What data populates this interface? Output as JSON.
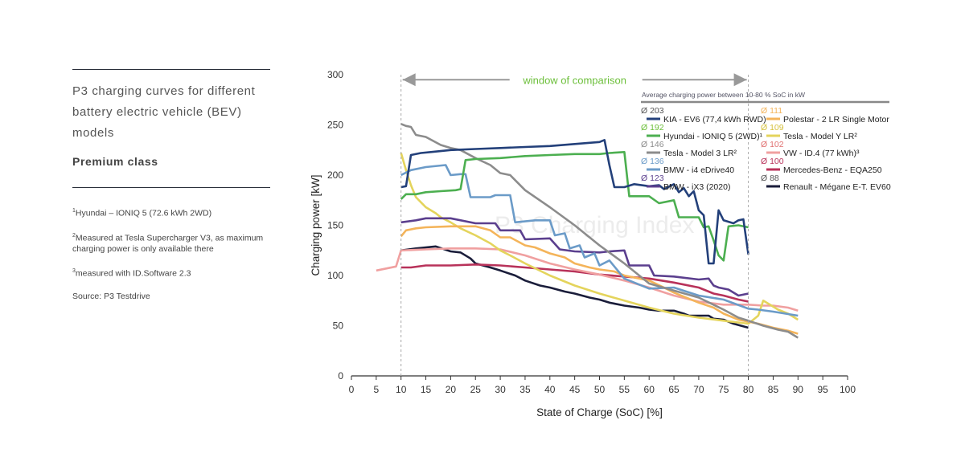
{
  "sidebar": {
    "title_lines": [
      "P3 charging curves for different",
      "battery electric vehicle (BEV)",
      "models"
    ],
    "class_label": "Premium class",
    "notes": [
      {
        "num": "1",
        "text": "Hyundai – IONIQ 5 (72.6 kWh 2WD)"
      },
      {
        "num": "2",
        "text": "Measured at Tesla Supercharger V3, as maximum charging power is only available there"
      },
      {
        "num": "3",
        "text": "measured with ID.Software 2.3"
      }
    ],
    "source": "Source: P3 Testdrive"
  },
  "chart_data": {
    "type": "line",
    "title": "P3 charging curves for different battery electric vehicle (BEV) models",
    "xlabel": "State of Charge (SoC) [%]",
    "ylabel": "Charging power [kW]",
    "xlim": [
      0,
      100
    ],
    "ylim": [
      0,
      300
    ],
    "xticks": [
      0,
      5,
      10,
      15,
      20,
      25,
      30,
      35,
      40,
      45,
      50,
      55,
      60,
      65,
      70,
      75,
      80,
      85,
      90,
      95,
      100
    ],
    "yticks": [
      0,
      50,
      100,
      150,
      200,
      250,
      300
    ],
    "window_label": "window of comparison",
    "window_range": [
      10,
      80
    ],
    "legend_title": "Average charging power between 10-80 % SoC in kW",
    "watermark": "P3 Charging Index",
    "series": [
      {
        "name": "KIA - EV6 (77,4 kWh RWD)",
        "avg": "Ø 203",
        "color": "#23407a",
        "avgColor": "#555555",
        "points": [
          [
            10,
            188
          ],
          [
            11,
            189
          ],
          [
            12,
            220
          ],
          [
            14,
            222
          ],
          [
            16,
            223
          ],
          [
            20,
            225
          ],
          [
            25,
            226
          ],
          [
            30,
            227
          ],
          [
            35,
            228
          ],
          [
            40,
            229
          ],
          [
            45,
            231
          ],
          [
            50,
            233
          ],
          [
            51,
            235
          ],
          [
            52,
            210
          ],
          [
            53,
            188
          ],
          [
            55,
            188
          ],
          [
            57,
            191
          ],
          [
            60,
            189
          ],
          [
            62,
            190
          ],
          [
            63,
            186
          ],
          [
            65,
            191
          ],
          [
            66,
            183
          ],
          [
            67,
            187
          ],
          [
            68,
            179
          ],
          [
            69,
            184
          ],
          [
            70,
            165
          ],
          [
            71,
            160
          ],
          [
            72,
            112
          ],
          [
            73,
            112
          ],
          [
            74,
            165
          ],
          [
            75,
            155
          ],
          [
            77,
            152
          ],
          [
            78,
            155
          ],
          [
            79,
            156
          ],
          [
            80,
            121
          ]
        ]
      },
      {
        "name": "Hyundai - IONIQ 5 (2WD)¹",
        "avg": "Ø 192",
        "color": "#4caf50",
        "avgColor": "#6cbf3a",
        "points": [
          [
            10,
            176
          ],
          [
            11,
            181
          ],
          [
            13,
            181
          ],
          [
            15,
            183
          ],
          [
            18,
            184
          ],
          [
            21,
            185
          ],
          [
            22,
            186
          ],
          [
            23,
            215
          ],
          [
            25,
            216
          ],
          [
            30,
            217
          ],
          [
            35,
            219
          ],
          [
            40,
            220
          ],
          [
            45,
            221
          ],
          [
            50,
            221
          ],
          [
            52,
            222
          ],
          [
            55,
            223
          ],
          [
            56,
            179
          ],
          [
            60,
            179
          ],
          [
            62,
            172
          ],
          [
            65,
            175
          ],
          [
            66,
            158
          ],
          [
            70,
            158
          ],
          [
            71,
            148
          ],
          [
            72,
            149
          ],
          [
            73,
            135
          ],
          [
            74,
            120
          ],
          [
            75,
            115
          ],
          [
            76,
            149
          ],
          [
            78,
            150
          ],
          [
            80,
            148
          ]
        ]
      },
      {
        "name": "Tesla - Model 3 LR²",
        "avg": "Ø 146",
        "color": "#8c8c8c",
        "avgColor": "#8c8c8c",
        "points": [
          [
            10,
            251
          ],
          [
            11,
            249
          ],
          [
            12,
            248
          ],
          [
            13,
            240
          ],
          [
            15,
            238
          ],
          [
            18,
            230
          ],
          [
            20,
            227
          ],
          [
            22,
            225
          ],
          [
            25,
            217
          ],
          [
            28,
            210
          ],
          [
            30,
            202
          ],
          [
            32,
            200
          ],
          [
            35,
            185
          ],
          [
            40,
            168
          ],
          [
            45,
            150
          ],
          [
            50,
            130
          ],
          [
            55,
            112
          ],
          [
            60,
            92
          ],
          [
            65,
            85
          ],
          [
            70,
            78
          ],
          [
            75,
            66
          ],
          [
            78,
            58
          ],
          [
            80,
            55
          ],
          [
            83,
            50
          ],
          [
            86,
            46
          ],
          [
            88,
            44
          ],
          [
            90,
            38
          ]
        ]
      },
      {
        "name": "BMW - i4 eDrive40",
        "avg": "Ø 136",
        "color": "#6b9bc8",
        "avgColor": "#6b9bc8",
        "points": [
          [
            10,
            200
          ],
          [
            12,
            205
          ],
          [
            15,
            208
          ],
          [
            19,
            210
          ],
          [
            20,
            200
          ],
          [
            22,
            201
          ],
          [
            23,
            201
          ],
          [
            24,
            178
          ],
          [
            28,
            178
          ],
          [
            29,
            180
          ],
          [
            32,
            180
          ],
          [
            33,
            153
          ],
          [
            37,
            155
          ],
          [
            40,
            155
          ],
          [
            41,
            140
          ],
          [
            43,
            142
          ],
          [
            44,
            127
          ],
          [
            46,
            130
          ],
          [
            47,
            118
          ],
          [
            49,
            122
          ],
          [
            50,
            110
          ],
          [
            52,
            115
          ],
          [
            55,
            97
          ],
          [
            60,
            87
          ],
          [
            65,
            88
          ],
          [
            70,
            80
          ],
          [
            75,
            76
          ],
          [
            80,
            67
          ],
          [
            82,
            66
          ],
          [
            85,
            64
          ],
          [
            90,
            60
          ]
        ]
      },
      {
        "name": "BMW - iX3 (2020)",
        "avg": "Ø 123",
        "color": "#5b3f8e",
        "avgColor": "#5b3f8e",
        "points": [
          [
            10,
            153
          ],
          [
            13,
            155
          ],
          [
            15,
            157
          ],
          [
            20,
            157
          ],
          [
            25,
            152
          ],
          [
            29,
            152
          ],
          [
            30,
            145
          ],
          [
            34,
            145
          ],
          [
            35,
            136
          ],
          [
            40,
            137
          ],
          [
            42,
            126
          ],
          [
            45,
            124
          ],
          [
            50,
            123
          ],
          [
            52,
            124
          ],
          [
            55,
            125
          ],
          [
            56,
            110
          ],
          [
            60,
            110
          ],
          [
            61,
            100
          ],
          [
            65,
            99
          ],
          [
            70,
            96
          ],
          [
            72,
            97
          ],
          [
            73,
            90
          ],
          [
            74,
            88
          ],
          [
            76,
            86
          ],
          [
            78,
            80
          ],
          [
            80,
            82
          ]
        ]
      },
      {
        "name": "Polestar - 2 LR Single Motor",
        "avg": "Ø 111",
        "color": "#f4b45a",
        "avgColor": "#f4b45a",
        "points": [
          [
            10,
            139
          ],
          [
            11,
            145
          ],
          [
            13,
            147
          ],
          [
            15,
            148
          ],
          [
            20,
            149
          ],
          [
            25,
            149
          ],
          [
            28,
            145
          ],
          [
            30,
            138
          ],
          [
            32,
            138
          ],
          [
            35,
            130
          ],
          [
            37,
            128
          ],
          [
            40,
            122
          ],
          [
            43,
            118
          ],
          [
            45,
            112
          ],
          [
            48,
            108
          ],
          [
            50,
            106
          ],
          [
            53,
            104
          ],
          [
            55,
            100
          ],
          [
            60,
            95
          ],
          [
            63,
            88
          ],
          [
            65,
            83
          ],
          [
            70,
            73
          ],
          [
            73,
            68
          ],
          [
            75,
            62
          ],
          [
            78,
            56
          ],
          [
            80,
            54
          ],
          [
            82,
            52
          ],
          [
            85,
            48
          ],
          [
            88,
            45
          ],
          [
            90,
            42
          ]
        ]
      },
      {
        "name": "Tesla - Model Y LR²",
        "avg": "Ø 109",
        "color": "#e4d45c",
        "avgColor": "#d6c13c",
        "points": [
          [
            10,
            222
          ],
          [
            11,
            205
          ],
          [
            12,
            190
          ],
          [
            13,
            178
          ],
          [
            15,
            168
          ],
          [
            17,
            162
          ],
          [
            18,
            158
          ],
          [
            20,
            153
          ],
          [
            22,
            147
          ],
          [
            25,
            140
          ],
          [
            28,
            132
          ],
          [
            30,
            125
          ],
          [
            32,
            120
          ],
          [
            35,
            112
          ],
          [
            40,
            100
          ],
          [
            45,
            90
          ],
          [
            50,
            82
          ],
          [
            55,
            75
          ],
          [
            60,
            68
          ],
          [
            65,
            62
          ],
          [
            70,
            58
          ],
          [
            75,
            55
          ],
          [
            80,
            52
          ],
          [
            82,
            60
          ],
          [
            83,
            75
          ],
          [
            84,
            72
          ],
          [
            86,
            66
          ],
          [
            88,
            62
          ],
          [
            90,
            56
          ]
        ]
      },
      {
        "name": "VW - ID.4 (77 kWh)³",
        "avg": "Ø 102",
        "color": "#f0a0a0",
        "avgColor": "#e07070",
        "points": [
          [
            5,
            105
          ],
          [
            7,
            107
          ],
          [
            9,
            109
          ],
          [
            10,
            125
          ],
          [
            15,
            126
          ],
          [
            20,
            127
          ],
          [
            25,
            127
          ],
          [
            30,
            126
          ],
          [
            35,
            120
          ],
          [
            40,
            112
          ],
          [
            45,
            106
          ],
          [
            50,
            101
          ],
          [
            55,
            95
          ],
          [
            60,
            88
          ],
          [
            65,
            80
          ],
          [
            70,
            74
          ],
          [
            75,
            71
          ],
          [
            80,
            71
          ],
          [
            83,
            70
          ],
          [
            85,
            70
          ],
          [
            88,
            68
          ],
          [
            90,
            65
          ]
        ]
      },
      {
        "name": "Mercedes-Benz - EQA250",
        "avg": "Ø 100",
        "color": "#b8325a",
        "avgColor": "#b8325a",
        "points": [
          [
            10,
            108
          ],
          [
            12,
            108
          ],
          [
            15,
            110
          ],
          [
            20,
            110
          ],
          [
            25,
            111
          ],
          [
            30,
            110
          ],
          [
            35,
            108
          ],
          [
            40,
            106
          ],
          [
            45,
            104
          ],
          [
            50,
            101
          ],
          [
            55,
            99
          ],
          [
            60,
            97
          ],
          [
            65,
            93
          ],
          [
            70,
            88
          ],
          [
            73,
            82
          ],
          [
            75,
            80
          ],
          [
            78,
            76
          ],
          [
            80,
            74
          ]
        ]
      },
      {
        "name": "Renault - Mégane E-T. EV60",
        "avg": "Ø 88",
        "color": "#1a1d3a",
        "avgColor": "#555555",
        "points": [
          [
            10,
            125
          ],
          [
            13,
            127
          ],
          [
            17,
            129
          ],
          [
            20,
            124
          ],
          [
            22,
            123
          ],
          [
            24,
            117
          ],
          [
            25,
            112
          ],
          [
            28,
            108
          ],
          [
            30,
            105
          ],
          [
            33,
            100
          ],
          [
            35,
            95
          ],
          [
            38,
            90
          ],
          [
            40,
            88
          ],
          [
            43,
            84
          ],
          [
            45,
            82
          ],
          [
            48,
            78
          ],
          [
            50,
            76
          ],
          [
            52,
            73
          ],
          [
            55,
            70
          ],
          [
            58,
            68
          ],
          [
            60,
            66
          ],
          [
            62,
            65
          ],
          [
            65,
            65
          ],
          [
            67,
            62
          ],
          [
            68,
            60
          ],
          [
            70,
            60
          ],
          [
            72,
            60
          ],
          [
            73,
            57
          ],
          [
            75,
            56
          ],
          [
            77,
            52
          ],
          [
            80,
            48
          ]
        ]
      }
    ]
  }
}
